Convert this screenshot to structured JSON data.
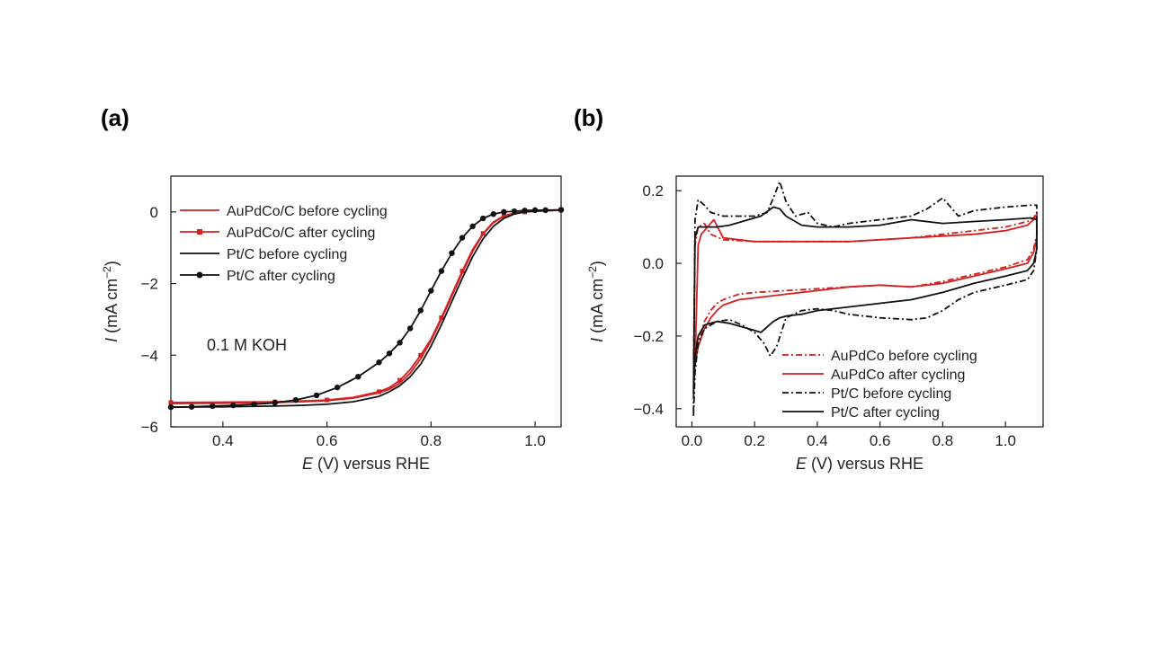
{
  "panels": {
    "a_label": "(a)",
    "b_label": "(b)"
  },
  "chart_data": [
    {
      "type": "line",
      "panel": "(a)",
      "xlabel_italic": "E",
      "xlabel_rest": " (V) versus RHE",
      "ylabel_italic": "I",
      "ylabel_rest": " (mA cm",
      "ylabel_sup": "−2",
      "ylabel_close": ")",
      "xlim": [
        0.3,
        1.05
      ],
      "ylim": [
        -6,
        1
      ],
      "xticks": [
        0.4,
        0.6,
        0.8,
        1.0
      ],
      "xtick_labels": [
        "0.4",
        "0.6",
        "0.8",
        "1.0"
      ],
      "yticks": [
        0,
        -2,
        -4,
        -6
      ],
      "ytick_labels": [
        "0",
        "−2",
        "−4",
        "−6"
      ],
      "annotation": "0.1 M KOH",
      "legend_position": "top-left",
      "series": [
        {
          "name": "AuPdCo/C before cycling",
          "color": "#d42020",
          "style": "solid",
          "marker": "none",
          "x": [
            0.3,
            0.4,
            0.5,
            0.55,
            0.6,
            0.65,
            0.7,
            0.72,
            0.74,
            0.76,
            0.78,
            0.8,
            0.82,
            0.84,
            0.86,
            0.88,
            0.9,
            0.92,
            0.94,
            0.96,
            0.98,
            1.0,
            1.05
          ],
          "y": [
            -5.35,
            -5.34,
            -5.32,
            -5.3,
            -5.27,
            -5.2,
            -5.05,
            -4.95,
            -4.78,
            -4.5,
            -4.1,
            -3.6,
            -3.0,
            -2.35,
            -1.7,
            -1.1,
            -0.62,
            -0.3,
            -0.12,
            -0.04,
            0.0,
            0.02,
            0.05
          ]
        },
        {
          "name": "AuPdCo/C after cycling",
          "color": "#d42020",
          "style": "solid",
          "marker": "square",
          "x": [
            0.3,
            0.4,
            0.5,
            0.55,
            0.6,
            0.65,
            0.7,
            0.72,
            0.74,
            0.76,
            0.78,
            0.8,
            0.82,
            0.84,
            0.86,
            0.88,
            0.9,
            0.92,
            0.94,
            0.96,
            0.98,
            1.0,
            1.05
          ],
          "y": [
            -5.32,
            -5.31,
            -5.3,
            -5.28,
            -5.25,
            -5.18,
            -5.02,
            -4.9,
            -4.7,
            -4.4,
            -4.0,
            -3.55,
            -2.95,
            -2.3,
            -1.65,
            -1.05,
            -0.6,
            -0.28,
            -0.11,
            -0.03,
            0.0,
            0.02,
            0.05
          ]
        },
        {
          "name": "Pt/C before cycling",
          "color": "#111111",
          "style": "solid",
          "marker": "none",
          "x": [
            0.3,
            0.4,
            0.5,
            0.55,
            0.6,
            0.65,
            0.7,
            0.72,
            0.74,
            0.76,
            0.78,
            0.8,
            0.82,
            0.84,
            0.86,
            0.88,
            0.9,
            0.92,
            0.94,
            0.96,
            0.98,
            1.0,
            1.05
          ],
          "y": [
            -5.45,
            -5.44,
            -5.42,
            -5.4,
            -5.37,
            -5.3,
            -5.15,
            -5.02,
            -4.85,
            -4.6,
            -4.25,
            -3.75,
            -3.15,
            -2.5,
            -1.85,
            -1.25,
            -0.75,
            -0.4,
            -0.18,
            -0.06,
            0.0,
            0.03,
            0.06
          ]
        },
        {
          "name": "Pt/C after cycling",
          "color": "#111111",
          "style": "solid",
          "marker": "circle",
          "x": [
            0.3,
            0.34,
            0.38,
            0.42,
            0.46,
            0.5,
            0.54,
            0.58,
            0.62,
            0.66,
            0.7,
            0.72,
            0.74,
            0.76,
            0.78,
            0.8,
            0.82,
            0.84,
            0.86,
            0.88,
            0.9,
            0.92,
            0.94,
            0.96,
            0.98,
            1.0,
            1.02,
            1.05
          ],
          "y": [
            -5.45,
            -5.44,
            -5.42,
            -5.4,
            -5.37,
            -5.33,
            -5.25,
            -5.12,
            -4.9,
            -4.6,
            -4.2,
            -3.95,
            -3.65,
            -3.25,
            -2.75,
            -2.2,
            -1.65,
            -1.15,
            -0.72,
            -0.4,
            -0.18,
            -0.06,
            0.0,
            0.02,
            0.04,
            0.05,
            0.05,
            0.06
          ]
        }
      ]
    },
    {
      "type": "line",
      "panel": "(b)",
      "xlabel_italic": "E",
      "xlabel_rest": " (V) versus RHE",
      "ylabel_italic": "I",
      "ylabel_rest": " (mA cm",
      "ylabel_sup": "−2",
      "ylabel_close": ")",
      "xlim": [
        -0.05,
        1.12
      ],
      "ylim": [
        -0.45,
        0.24
      ],
      "xticks": [
        0.0,
        0.2,
        0.4,
        0.6,
        0.8,
        1.0
      ],
      "xtick_labels": [
        "0.0",
        "0.2",
        "0.4",
        "0.6",
        "0.8",
        "1.0"
      ],
      "yticks": [
        0.2,
        0.0,
        -0.2,
        -0.4
      ],
      "ytick_labels": [
        "0.2",
        "0.0",
        "−0.2",
        "−0.4"
      ],
      "legend_position": "bottom-right",
      "series": [
        {
          "name": "AuPdCo before cycling",
          "color": "#d42020",
          "style": "dashdot",
          "x": [
            0.01,
            0.02,
            0.04,
            0.06,
            0.08,
            0.1,
            0.15,
            0.2,
            0.3,
            0.4,
            0.5,
            0.6,
            0.7,
            0.8,
            0.9,
            1.0,
            1.07,
            1.09,
            1.1,
            1.1,
            1.09,
            1.07,
            1.0,
            0.9,
            0.8,
            0.7,
            0.6,
            0.5,
            0.4,
            0.3,
            0.2,
            0.1,
            0.06,
            0.04,
            0.02,
            0.01,
            0.005
          ],
          "y": [
            -0.27,
            -0.22,
            -0.16,
            -0.13,
            -0.11,
            -0.1,
            -0.085,
            -0.08,
            -0.075,
            -0.07,
            -0.065,
            -0.06,
            -0.065,
            -0.05,
            -0.03,
            -0.01,
            0.01,
            0.04,
            0.08,
            0.14,
            0.125,
            0.115,
            0.1,
            0.09,
            0.08,
            0.07,
            0.065,
            0.06,
            0.06,
            0.06,
            0.06,
            0.065,
            0.08,
            0.11,
            0.1,
            0.05,
            -0.27
          ]
        },
        {
          "name": "AuPdCo after cycling",
          "color": "#d42020",
          "style": "solid",
          "x": [
            0.01,
            0.02,
            0.04,
            0.06,
            0.08,
            0.1,
            0.15,
            0.2,
            0.3,
            0.4,
            0.5,
            0.6,
            0.7,
            0.8,
            0.9,
            1.0,
            1.07,
            1.09,
            1.1,
            1.1,
            1.09,
            1.07,
            1.0,
            0.9,
            0.8,
            0.7,
            0.6,
            0.5,
            0.4,
            0.3,
            0.2,
            0.1,
            0.07,
            0.05,
            0.03,
            0.02,
            0.01
          ],
          "y": [
            -0.28,
            -0.23,
            -0.18,
            -0.15,
            -0.13,
            -0.115,
            -0.1,
            -0.095,
            -0.085,
            -0.075,
            -0.065,
            -0.06,
            -0.065,
            -0.055,
            -0.035,
            -0.015,
            0.0,
            0.03,
            0.07,
            0.135,
            0.12,
            0.105,
            0.09,
            0.08,
            0.075,
            0.07,
            0.065,
            0.06,
            0.06,
            0.06,
            0.06,
            0.07,
            0.12,
            0.1,
            0.08,
            0.05,
            -0.28
          ]
        },
        {
          "name": "Pt/C before cycling",
          "color": "#111111",
          "style": "dashdot",
          "x": [
            0.005,
            0.01,
            0.02,
            0.04,
            0.08,
            0.12,
            0.16,
            0.2,
            0.23,
            0.25,
            0.27,
            0.3,
            0.35,
            0.4,
            0.45,
            0.5,
            0.6,
            0.7,
            0.75,
            0.8,
            0.85,
            0.9,
            1.0,
            1.07,
            1.09,
            1.1,
            1.1,
            1.08,
            1.0,
            0.9,
            0.85,
            0.8,
            0.75,
            0.7,
            0.6,
            0.5,
            0.45,
            0.4,
            0.37,
            0.33,
            0.3,
            0.28,
            0.26,
            0.24,
            0.2,
            0.15,
            0.1,
            0.06,
            0.04,
            0.02,
            0.01,
            0.005
          ],
          "y": [
            -0.42,
            -0.3,
            -0.22,
            -0.18,
            -0.16,
            -0.155,
            -0.17,
            -0.19,
            -0.22,
            -0.255,
            -0.23,
            -0.15,
            -0.13,
            -0.125,
            -0.13,
            -0.14,
            -0.15,
            -0.155,
            -0.15,
            -0.13,
            -0.1,
            -0.08,
            -0.06,
            -0.045,
            -0.02,
            0.04,
            0.16,
            0.16,
            0.155,
            0.145,
            0.13,
            0.18,
            0.15,
            0.13,
            0.12,
            0.11,
            0.1,
            0.11,
            0.14,
            0.13,
            0.17,
            0.225,
            0.18,
            0.14,
            0.13,
            0.13,
            0.13,
            0.14,
            0.16,
            0.175,
            0.12,
            -0.42
          ]
        },
        {
          "name": "Pt/C after cycling",
          "color": "#111111",
          "style": "solid",
          "x": [
            0.005,
            0.01,
            0.02,
            0.04,
            0.08,
            0.12,
            0.16,
            0.2,
            0.22,
            0.24,
            0.26,
            0.28,
            0.3,
            0.35,
            0.4,
            0.5,
            0.6,
            0.7,
            0.8,
            0.9,
            1.0,
            1.07,
            1.09,
            1.1,
            1.1,
            1.08,
            1.0,
            0.9,
            0.8,
            0.7,
            0.6,
            0.5,
            0.4,
            0.35,
            0.3,
            0.28,
            0.26,
            0.22,
            0.18,
            0.12,
            0.08,
            0.04,
            0.02,
            0.01,
            0.005
          ],
          "y": [
            -0.36,
            -0.26,
            -0.2,
            -0.17,
            -0.16,
            -0.165,
            -0.175,
            -0.185,
            -0.19,
            -0.175,
            -0.16,
            -0.15,
            -0.145,
            -0.14,
            -0.13,
            -0.12,
            -0.11,
            -0.1,
            -0.08,
            -0.055,
            -0.035,
            -0.02,
            0.0,
            0.04,
            0.12,
            0.125,
            0.12,
            0.115,
            0.11,
            0.12,
            0.105,
            0.1,
            0.1,
            0.105,
            0.13,
            0.15,
            0.155,
            0.13,
            0.12,
            0.105,
            0.1,
            0.1,
            0.1,
            0.07,
            -0.36
          ]
        }
      ]
    }
  ]
}
